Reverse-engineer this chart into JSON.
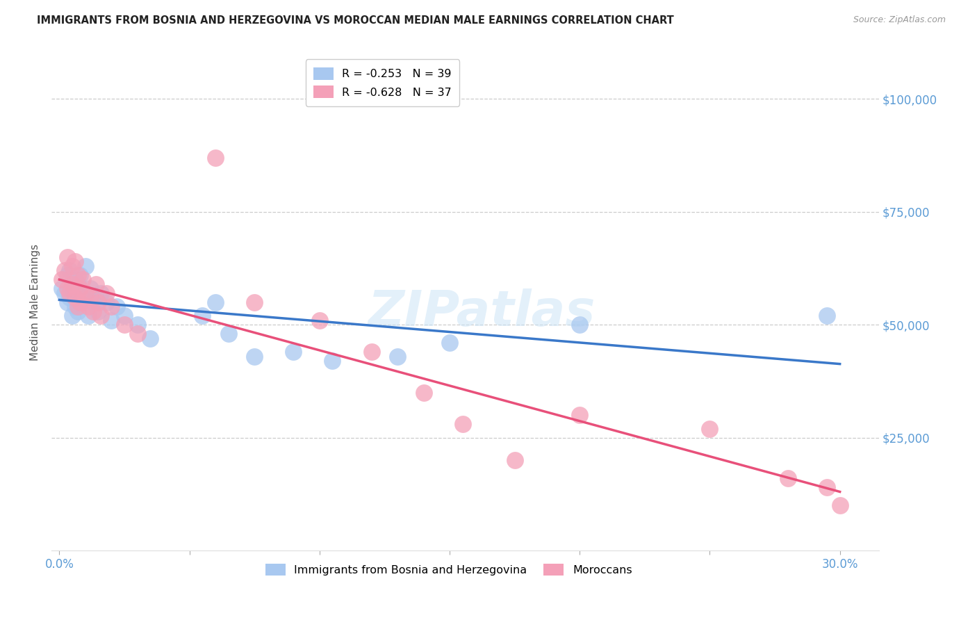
{
  "title": "IMMIGRANTS FROM BOSNIA AND HERZEGOVINA VS MOROCCAN MEDIAN MALE EARNINGS CORRELATION CHART",
  "source": "Source: ZipAtlas.com",
  "ylabel": "Median Male Earnings",
  "xlabel_ticks": [
    "0.0%",
    "",
    "",
    "",
    "",
    "",
    "30.0%"
  ],
  "xlabel_vals": [
    0.0,
    0.05,
    0.1,
    0.15,
    0.2,
    0.25,
    0.3
  ],
  "ytick_labels": [
    "$25,000",
    "$50,000",
    "$75,000",
    "$100,000"
  ],
  "ytick_vals": [
    25000,
    50000,
    75000,
    100000
  ],
  "ylim": [
    0,
    110000
  ],
  "xlim": [
    -0.003,
    0.315
  ],
  "legend_entries": [
    {
      "label": "R = -0.253   N = 39",
      "color": "#a8c8f0"
    },
    {
      "label": "R = -0.628   N = 37",
      "color": "#f4a0b8"
    }
  ],
  "legend_bottom": [
    "Immigrants from Bosnia and Herzegovina",
    "Moroccans"
  ],
  "watermark": "ZIPatlas",
  "blue_color": "#a8c8f0",
  "pink_color": "#f4a0b8",
  "blue_line_color": "#3a78c9",
  "pink_line_color": "#e8507a",
  "axis_label_color": "#5b9bd5",
  "title_color": "#222222",
  "grid_color": "#cccccc",
  "bosnia_x": [
    0.001,
    0.002,
    0.003,
    0.003,
    0.004,
    0.004,
    0.005,
    0.005,
    0.006,
    0.006,
    0.007,
    0.007,
    0.008,
    0.008,
    0.009,
    0.01,
    0.01,
    0.011,
    0.012,
    0.013,
    0.014,
    0.015,
    0.016,
    0.018,
    0.02,
    0.022,
    0.025,
    0.03,
    0.035,
    0.055,
    0.06,
    0.065,
    0.075,
    0.09,
    0.105,
    0.13,
    0.15,
    0.2,
    0.295
  ],
  "bosnia_y": [
    58000,
    57000,
    55000,
    61000,
    56000,
    62000,
    52000,
    58000,
    54000,
    60000,
    53000,
    59000,
    55000,
    61000,
    56000,
    57000,
    63000,
    52000,
    58000,
    55000,
    56000,
    53000,
    57000,
    55000,
    51000,
    54000,
    52000,
    50000,
    47000,
    52000,
    55000,
    48000,
    43000,
    44000,
    42000,
    43000,
    46000,
    50000,
    52000
  ],
  "moroccan_x": [
    0.001,
    0.002,
    0.003,
    0.003,
    0.004,
    0.005,
    0.005,
    0.006,
    0.006,
    0.007,
    0.007,
    0.008,
    0.008,
    0.009,
    0.01,
    0.011,
    0.012,
    0.013,
    0.014,
    0.015,
    0.016,
    0.018,
    0.02,
    0.025,
    0.03,
    0.06,
    0.075,
    0.1,
    0.12,
    0.14,
    0.155,
    0.175,
    0.2,
    0.25,
    0.28,
    0.295,
    0.3
  ],
  "moroccan_y": [
    60000,
    62000,
    58000,
    65000,
    57000,
    63000,
    59000,
    56000,
    64000,
    54000,
    61000,
    58000,
    55000,
    60000,
    57000,
    54000,
    56000,
    53000,
    59000,
    55000,
    52000,
    57000,
    54000,
    50000,
    48000,
    87000,
    55000,
    51000,
    44000,
    35000,
    28000,
    20000,
    30000,
    27000,
    16000,
    14000,
    10000
  ]
}
